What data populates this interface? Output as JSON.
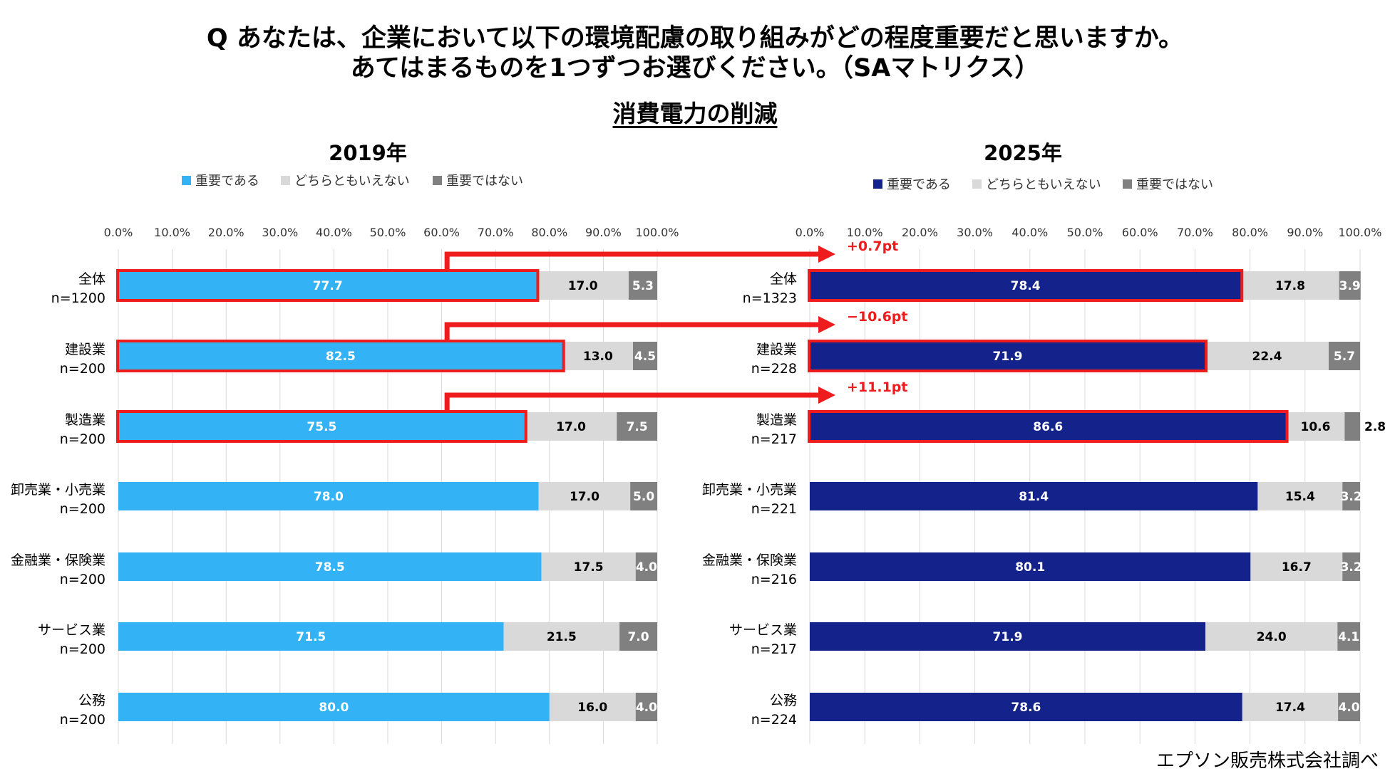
{
  "question": {
    "line1": "Q あなたは、企業において以下の環境配慮の取り組みがどの程度重要だと思いますか。",
    "line2": "あてはまるものを1つずつお選びください。（SAマトリクス）"
  },
  "subtitle": "消費電力の削減",
  "source": "エプソン販売株式会社調べ",
  "chart_data": [
    {
      "type": "bar",
      "stacked": true,
      "orientation": "horizontal",
      "title": "2019年",
      "xlim": [
        0,
        100
      ],
      "xticks": [
        "0.0%",
        "10.0%",
        "20.0%",
        "30.0%",
        "40.0%",
        "50.0%",
        "60.0%",
        "70.0%",
        "80.0%",
        "90.0%",
        "100.0%"
      ],
      "grid": true,
      "legend_position": "top",
      "categories": [
        {
          "label": "全体",
          "n": "n=1200"
        },
        {
          "label": "建設業",
          "n": "n=200"
        },
        {
          "label": "製造業",
          "n": "n=200"
        },
        {
          "label": "卸売業・小売業",
          "n": "n=200"
        },
        {
          "label": "金融業・保険業",
          "n": "n=200"
        },
        {
          "label": "サービス業",
          "n": "n=200"
        },
        {
          "label": "公務",
          "n": "n=200"
        }
      ],
      "series": [
        {
          "name": "重要である",
          "color": "#33b2f5",
          "values": [
            77.7,
            82.5,
            75.5,
            78.0,
            78.5,
            71.5,
            80.0
          ],
          "labels": [
            "77.7",
            "82.5",
            "75.5",
            "78.0",
            "78.5",
            "71.5",
            "80.0"
          ]
        },
        {
          "name": "どちらともいえない",
          "color": "#d9d9d9",
          "values": [
            17.0,
            13.0,
            17.0,
            17.0,
            17.5,
            21.5,
            16.0
          ],
          "labels": [
            "17.0",
            "13.0",
            "17.0",
            "17.0",
            "17.5",
            "21.5",
            "16.0"
          ]
        },
        {
          "name": "重要ではない",
          "color": "#808080",
          "values": [
            5.3,
            4.5,
            7.5,
            5.0,
            4.0,
            7.0,
            4.0
          ],
          "labels": [
            "5.3",
            "4.5",
            "7.5",
            "5.0",
            "4.0",
            "7.0",
            "4.0"
          ]
        }
      ],
      "highlighted_rows": [
        0,
        1,
        2
      ]
    },
    {
      "type": "bar",
      "stacked": true,
      "orientation": "horizontal",
      "title": "2025年",
      "xlim": [
        0,
        100
      ],
      "xticks": [
        "0.0%",
        "10.0%",
        "20.0%",
        "30.0%",
        "40.0%",
        "50.0%",
        "60.0%",
        "70.0%",
        "80.0%",
        "90.0%",
        "100.0%"
      ],
      "grid": true,
      "legend_position": "top",
      "categories": [
        {
          "label": "全体",
          "n": "n=1323"
        },
        {
          "label": "建設業",
          "n": "n=228"
        },
        {
          "label": "製造業",
          "n": "n=217"
        },
        {
          "label": "卸売業・小売業",
          "n": "n=221"
        },
        {
          "label": "金融業・保険業",
          "n": "n=216"
        },
        {
          "label": "サービス業",
          "n": "n=217"
        },
        {
          "label": "公務",
          "n": "n=224"
        }
      ],
      "series": [
        {
          "name": "重要である",
          "color": "#14238c",
          "values": [
            78.4,
            71.9,
            86.6,
            81.4,
            80.1,
            71.9,
            78.6
          ],
          "labels": [
            "78.4",
            "71.9",
            "86.6",
            "81.4",
            "80.1",
            "71.9",
            "78.6"
          ]
        },
        {
          "name": "どちらともいえない",
          "color": "#d9d9d9",
          "values": [
            17.8,
            22.4,
            10.6,
            15.4,
            16.7,
            24.0,
            17.4
          ],
          "labels": [
            "17.8",
            "22.4",
            "10.6",
            "15.4",
            "16.7",
            "24.0",
            "17.4"
          ]
        },
        {
          "name": "重要ではない",
          "color": "#808080",
          "values": [
            3.9,
            5.7,
            2.8,
            3.2,
            3.2,
            4.1,
            4.0
          ],
          "labels": [
            "3.9",
            "5.7",
            "2.8",
            "3.2",
            "3.2",
            "4.1",
            "4.0"
          ]
        }
      ],
      "highlighted_rows": [
        0,
        1,
        2
      ]
    }
  ],
  "annotations": [
    {
      "row": 0,
      "text": "+0.7pt"
    },
    {
      "row": 1,
      "text": "−10.6pt"
    },
    {
      "row": 2,
      "text": "+11.1pt"
    }
  ],
  "colors": {
    "highlight": "#ee1c1c",
    "label_light": "#ffffff",
    "label_dark": "#000000",
    "grid": "#d9d9d9"
  }
}
